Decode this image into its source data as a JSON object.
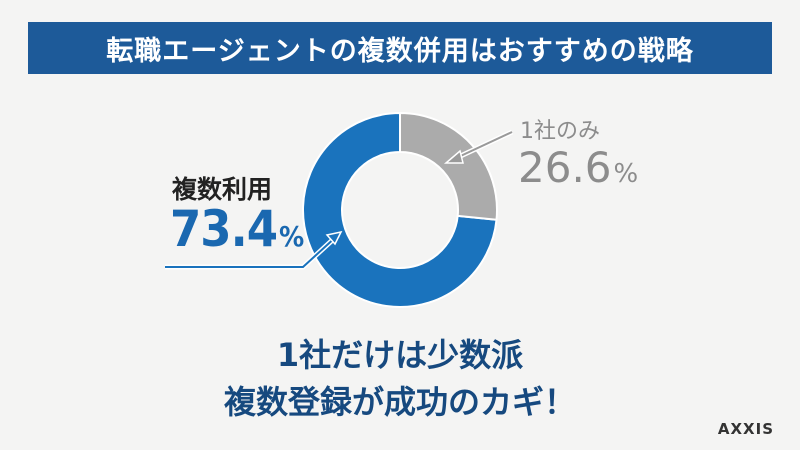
{
  "title": "転職エージェントの複数併用はおすすめの戦略",
  "message": {
    "line1": "1社だけは少数派",
    "line2": "複数登録が成功のカギ！"
  },
  "logo": "AXXIS",
  "colors": {
    "title_background": "#1d5a99",
    "multiple_segment": "#1a73bd",
    "single_segment": "#ababab",
    "message_text": "#16497f"
  },
  "chart_data": {
    "type": "pie",
    "style": "donut",
    "slices": [
      {
        "label": "複数利用",
        "value": 73.4,
        "value_text": "73.4",
        "unit": "%",
        "color": "#1a73bd"
      },
      {
        "label": "1社のみ",
        "value": 26.6,
        "value_text": "26.6",
        "unit": "%",
        "color": "#ababab"
      }
    ]
  }
}
